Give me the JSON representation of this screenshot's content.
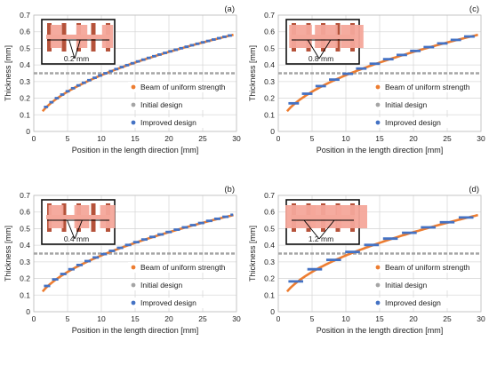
{
  "legend_labels": {
    "uniform": "Beam of uniform strength",
    "initial": "Initial design",
    "improved": "Improved design"
  },
  "colors": {
    "uniform": "#ED7D31",
    "initial": "#A5A5A5",
    "improved": "#4472C4",
    "inset_metal": "#B5523A",
    "inset_pad": "#F4A79A",
    "inset_frame": "#111111",
    "grid": "#D9D9D9"
  },
  "chart_data": [
    {
      "type": "line",
      "panel_label": "(a)",
      "inset_label": "0.2 mm",
      "segment_length": 0.2,
      "xlabel": "Position in the length direction [mm]",
      "ylabel": "Thickness [mm]",
      "xlim": [
        0,
        30
      ],
      "ylim": [
        0,
        0.7
      ],
      "xticks": [
        "0",
        "5",
        "10",
        "15",
        "20",
        "25",
        "30"
      ],
      "yticks": [
        "0",
        "0.1",
        "0.2",
        "0.3",
        "0.4",
        "0.5",
        "0.6",
        "0.7"
      ],
      "grid": true,
      "legend_position": "bottom-right",
      "uniform_strength": {
        "x": [
          1.5,
          3,
          5,
          7.5,
          10,
          12.5,
          15,
          17.5,
          20,
          22.5,
          25,
          27.5,
          29.5
        ],
        "y": [
          0.12,
          0.18,
          0.225,
          0.28,
          0.33,
          0.37,
          0.405,
          0.44,
          0.47,
          0.5,
          0.53,
          0.56,
          0.585
        ]
      },
      "initial_design": {
        "x": [
          0,
          30
        ],
        "y": [
          0.35,
          0.35
        ]
      },
      "improved_design": {
        "step": 0.8,
        "x_start": 1.5,
        "x_end": 29.5
      }
    },
    {
      "type": "line",
      "panel_label": "(b)",
      "inset_label": "0.4 mm",
      "segment_length": 0.4,
      "xlabel": "Position in the length direction [mm]",
      "ylabel": "Thickness [mm]",
      "xlim": [
        0,
        30
      ],
      "ylim": [
        0,
        0.7
      ],
      "xticks": [
        "0",
        "5",
        "10",
        "15",
        "20",
        "25",
        "30"
      ],
      "yticks": [
        "0",
        "0.1",
        "0.2",
        "0.3",
        "0.4",
        "0.5",
        "0.6",
        "0.7"
      ],
      "grid": true,
      "legend_position": "bottom-right",
      "uniform_strength": {
        "x": [
          1.5,
          3,
          5,
          7.5,
          10,
          12.5,
          15,
          17.5,
          20,
          22.5,
          25,
          27.5,
          29.5
        ],
        "y": [
          0.12,
          0.18,
          0.225,
          0.28,
          0.33,
          0.37,
          0.405,
          0.44,
          0.47,
          0.5,
          0.53,
          0.56,
          0.585
        ]
      },
      "initial_design": {
        "x": [
          0,
          30
        ],
        "y": [
          0.35,
          0.35
        ]
      },
      "improved_design": {
        "step": 1.2,
        "x_start": 1.5,
        "x_end": 29.5
      }
    },
    {
      "type": "line",
      "panel_label": "(c)",
      "inset_label": "0.8 mm",
      "segment_length": 0.8,
      "xlabel": "Position in the length direction [mm]",
      "ylabel": "Thickness [mm]",
      "xlim": [
        0,
        30
      ],
      "ylim": [
        0,
        0.7
      ],
      "xticks": [
        "0",
        "5",
        "10",
        "15",
        "20",
        "25",
        "30"
      ],
      "yticks": [
        "0",
        "0.1",
        "0.2",
        "0.3",
        "0.4",
        "0.5",
        "0.6",
        "0.7"
      ],
      "grid": true,
      "legend_position": "bottom-right",
      "uniform_strength": {
        "x": [
          1.5,
          3,
          5,
          7.5,
          10,
          12.5,
          15,
          17.5,
          20,
          22.5,
          25,
          27.5,
          29.5
        ],
        "y": [
          0.12,
          0.18,
          0.225,
          0.28,
          0.33,
          0.37,
          0.405,
          0.44,
          0.47,
          0.5,
          0.53,
          0.56,
          0.585
        ]
      },
      "initial_design": {
        "x": [
          0,
          30
        ],
        "y": [
          0.35,
          0.35
        ]
      },
      "improved_design": {
        "step": 2.0,
        "x_start": 1.5,
        "x_end": 29.5
      }
    },
    {
      "type": "line",
      "panel_label": "(d)",
      "inset_label": "1.2 mm",
      "segment_length": 1.2,
      "xlabel": "Position in the length direction [mm]",
      "ylabel": "Thickness [mm]",
      "xlim": [
        0,
        30
      ],
      "ylim": [
        0,
        0.7
      ],
      "xticks": [
        "0",
        "5",
        "10",
        "15",
        "20",
        "25",
        "30"
      ],
      "yticks": [
        "0",
        "0.1",
        "0.2",
        "0.3",
        "0.4",
        "0.5",
        "0.6",
        "0.7"
      ],
      "grid": true,
      "legend_position": "bottom-right",
      "uniform_strength": {
        "x": [
          1.5,
          3,
          5,
          7.5,
          10,
          12.5,
          15,
          17.5,
          20,
          22.5,
          25,
          27.5,
          29.5
        ],
        "y": [
          0.12,
          0.18,
          0.225,
          0.28,
          0.33,
          0.37,
          0.405,
          0.44,
          0.47,
          0.5,
          0.53,
          0.56,
          0.585
        ]
      },
      "initial_design": {
        "x": [
          0,
          30
        ],
        "y": [
          0.35,
          0.35
        ]
      },
      "improved_design": {
        "step": 2.8,
        "x_start": 1.5,
        "x_end": 29.5
      }
    }
  ]
}
